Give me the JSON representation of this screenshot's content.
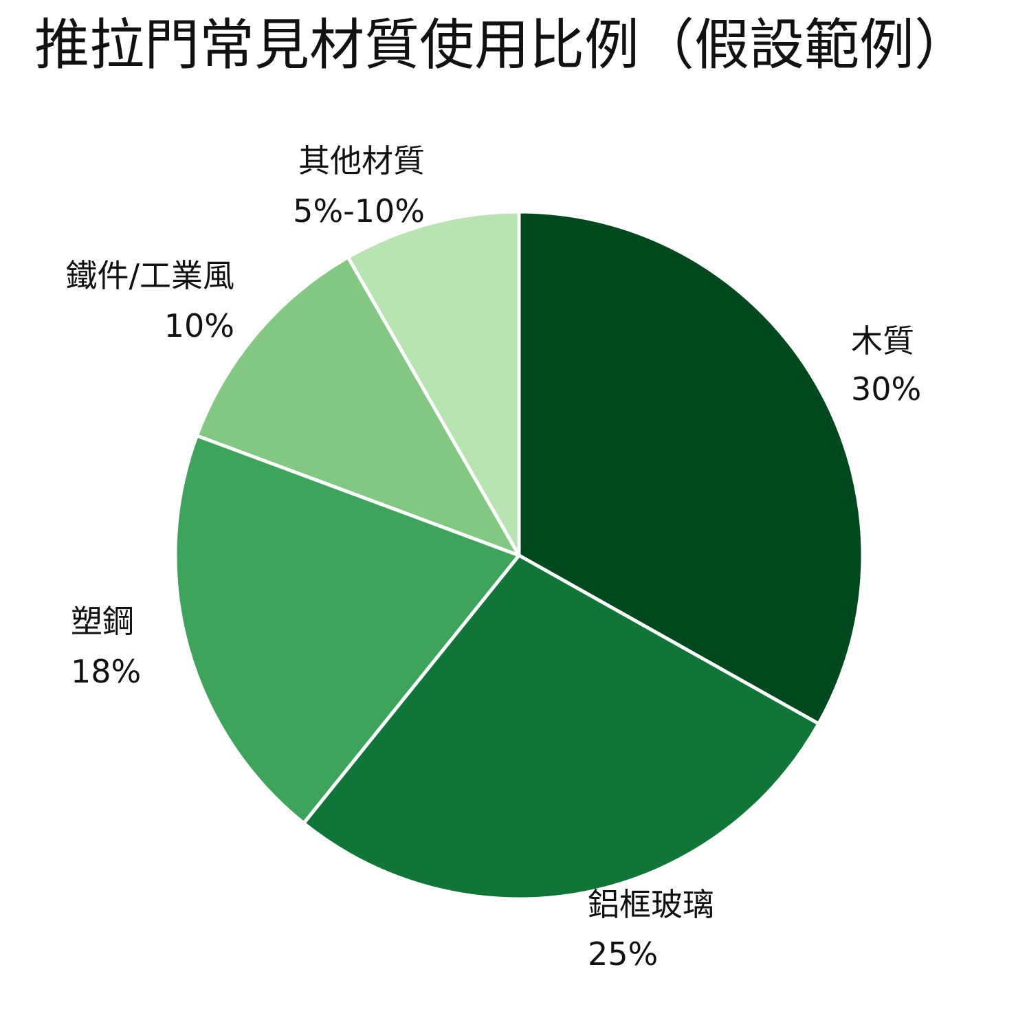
{
  "chart_data": {
    "type": "pie",
    "title": "推拉門常見材質使用比例（假設範例）",
    "slices": [
      {
        "name": "木質",
        "value_label": "30%",
        "value": 30,
        "color": "#00491e"
      },
      {
        "name": "鋁框玻璃",
        "value_label": "25%",
        "value": 25,
        "color": "#0f7637"
      },
      {
        "name": "塑鋼",
        "value_label": "18%",
        "value": 18,
        "color": "#3ea35b"
      },
      {
        "name": "鐵件/工業風",
        "value_label": "10%",
        "value": 10,
        "color": "#82c782"
      },
      {
        "name": "其他材質",
        "value_label": "5%-10%",
        "value": 7.5,
        "color": "#b9e3b3"
      }
    ],
    "start_angle": "12 o'clock",
    "direction": "clockwise",
    "legend": "none"
  }
}
